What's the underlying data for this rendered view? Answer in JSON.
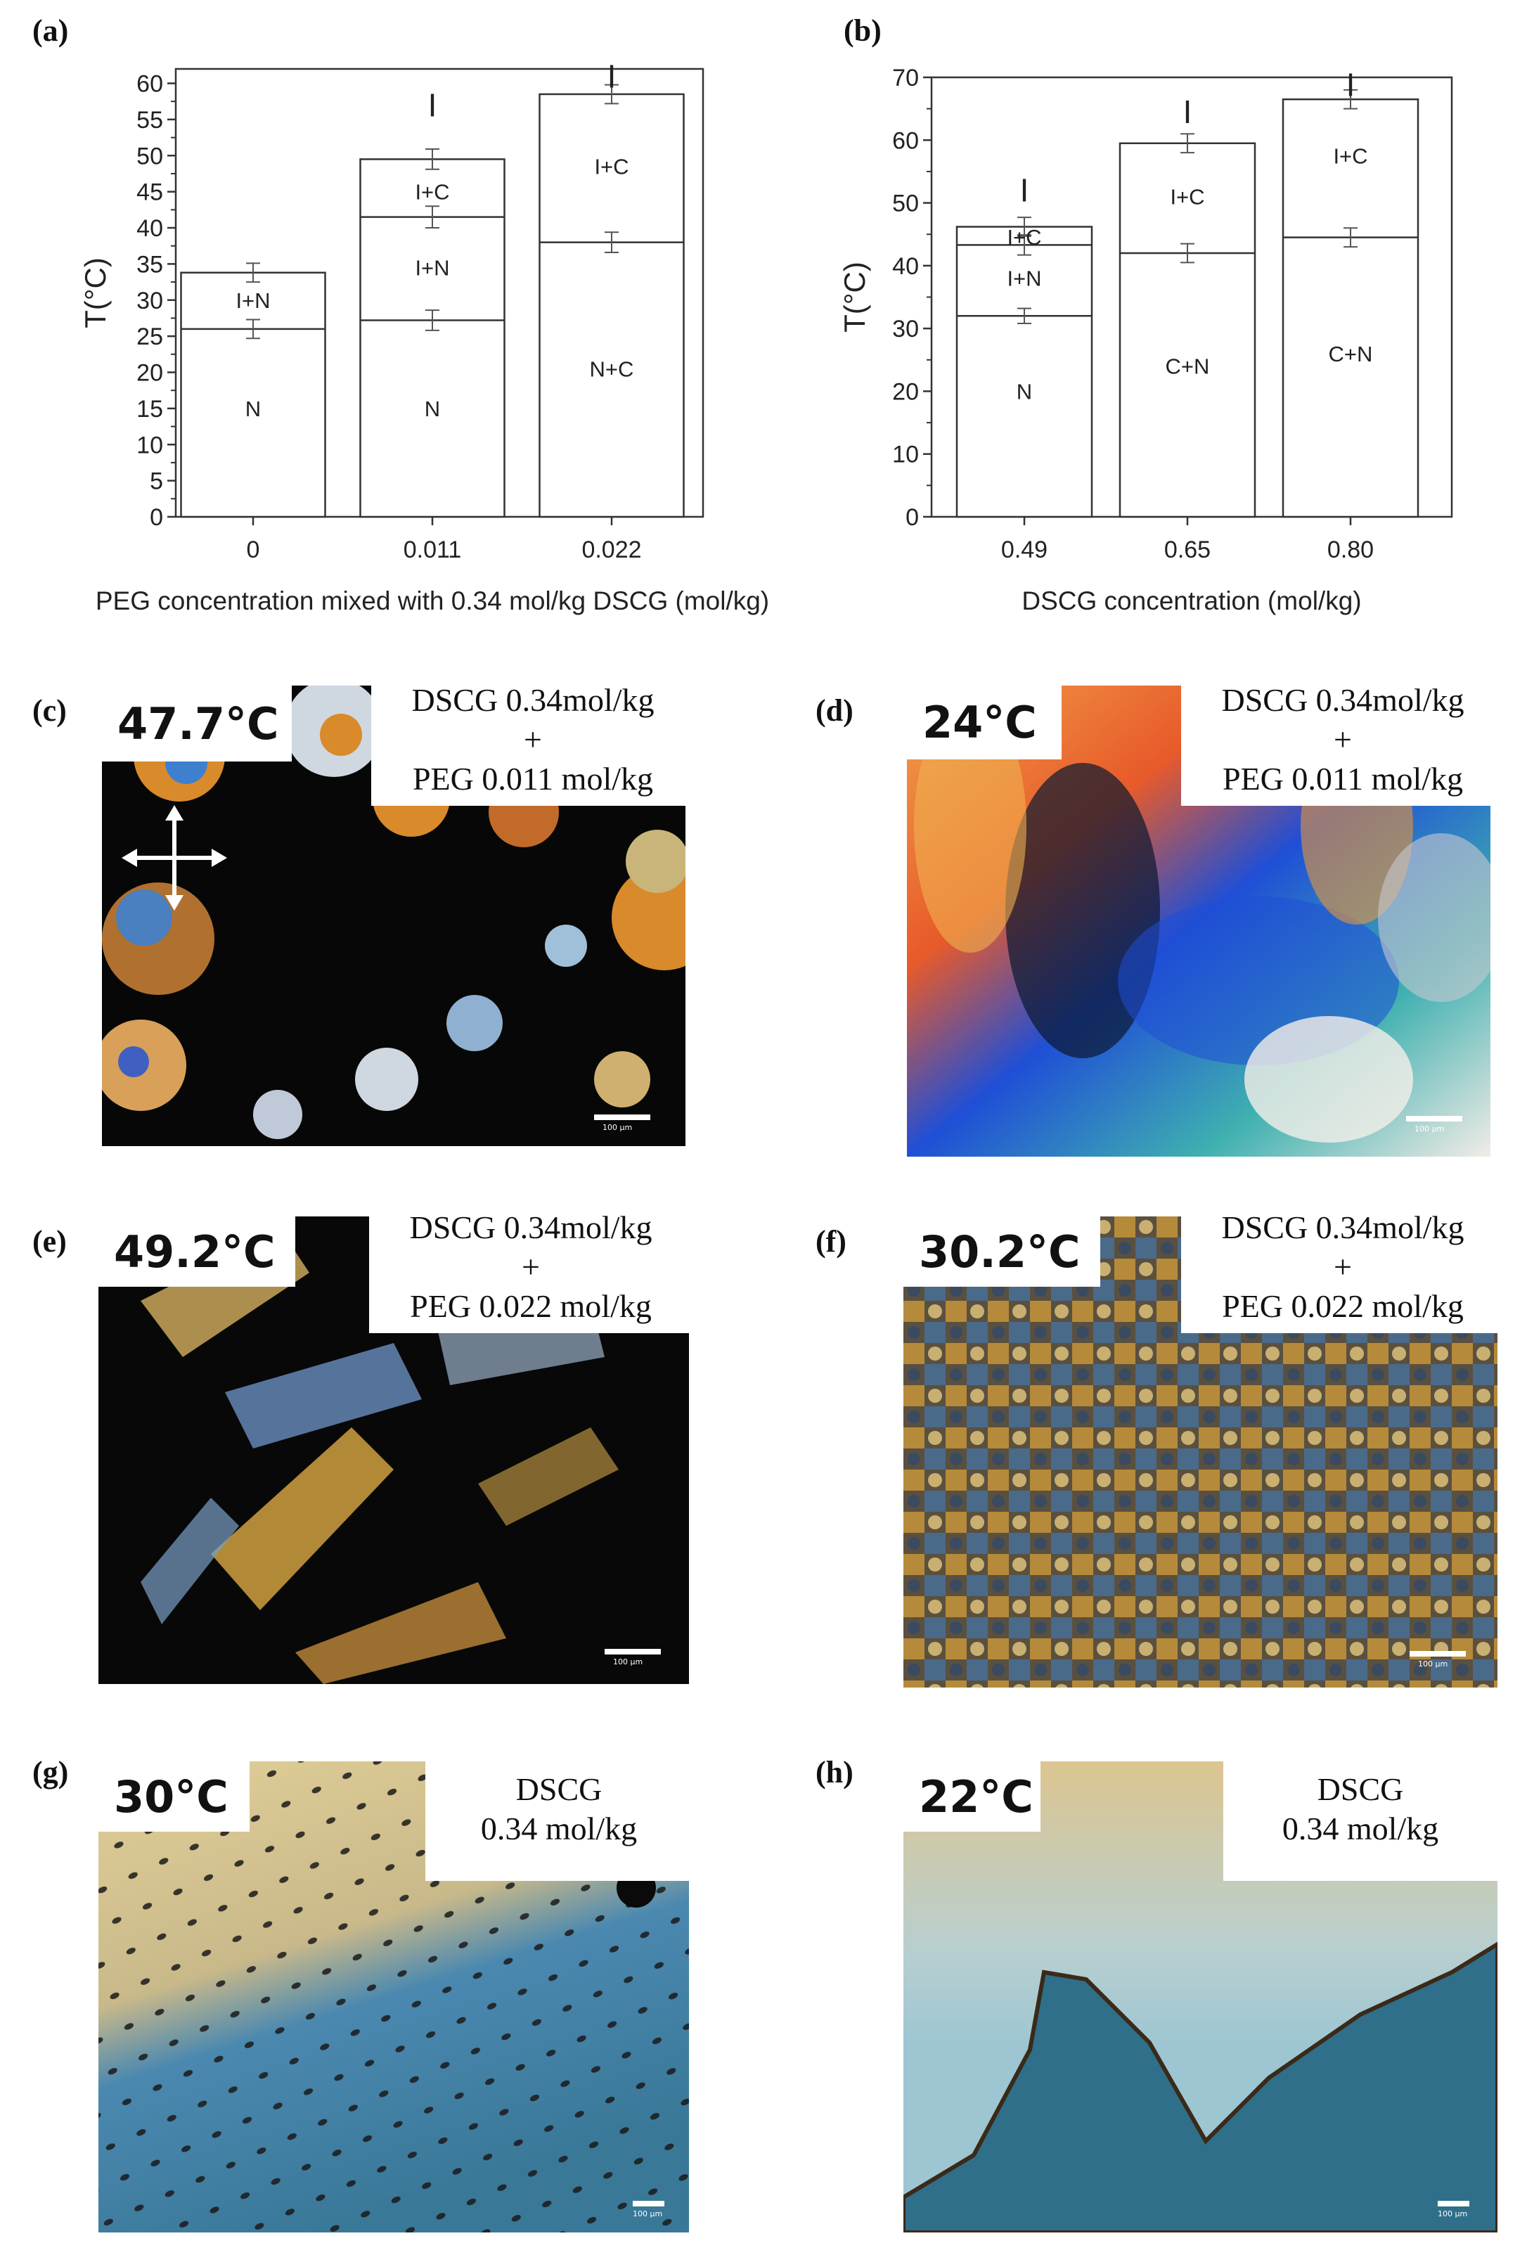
{
  "chart_data": [
    {
      "panel": "(a)",
      "type": "bar",
      "categories": [
        "0",
        "0.011",
        "0.022"
      ],
      "xlabel": "PEG concentration mixed with 0.34 mol/kg DSCG (mol/kg)",
      "ylabel": "T(°C)",
      "ylim": [
        0,
        62
      ],
      "yticks": [
        0,
        5,
        10,
        15,
        20,
        25,
        30,
        35,
        40,
        45,
        50,
        55,
        60
      ],
      "boundaries": [
        {
          "values": [
            26,
            41.5,
            38
          ],
          "errors": [
            1.3,
            1.5,
            1.4
          ]
        },
        {
          "values": [
            33.8,
            49.5,
            58.5
          ],
          "errors": [
            1.3,
            1.4,
            1.3
          ]
        },
        {
          "values": [
            null,
            27.2,
            null
          ],
          "errors": [
            null,
            1.4,
            null
          ]
        }
      ],
      "region_labels": [
        {
          "category": "0",
          "y": 15,
          "text": "N"
        },
        {
          "category": "0",
          "y": 30,
          "text": "I+N"
        },
        {
          "category": "0.011",
          "y": 15,
          "text": "N"
        },
        {
          "category": "0.011",
          "y": 34.5,
          "text": "I+N"
        },
        {
          "category": "0.011",
          "y": 45,
          "text": "I+C"
        },
        {
          "category": "0.011",
          "y": 57,
          "text": "I"
        },
        {
          "category": "0.022",
          "y": 20.5,
          "text": "N+C"
        },
        {
          "category": "0.022",
          "y": 48.5,
          "text": "I+C"
        },
        {
          "category": "0.022",
          "y": 61,
          "text": "I"
        }
      ]
    },
    {
      "panel": "(b)",
      "type": "bar",
      "categories": [
        "0.49",
        "0.65",
        "0.80"
      ],
      "xlabel": "DSCG concentration (mol/kg)",
      "ylabel": "T(°C)",
      "ylim": [
        0,
        70
      ],
      "yticks": [
        0,
        10,
        20,
        30,
        40,
        50,
        60,
        70
      ],
      "boundaries": [
        {
          "values": [
            32,
            42,
            44.5
          ],
          "errors": [
            1.2,
            1.5,
            1.5
          ]
        },
        {
          "values": [
            43.3,
            59.5,
            66.5
          ],
          "errors": [
            1.6,
            1.5,
            1.5
          ]
        },
        {
          "values": [
            46.2,
            null,
            null
          ],
          "errors": [
            1.5,
            null,
            null
          ]
        }
      ],
      "region_labels": [
        {
          "category": "0.49",
          "y": 20,
          "text": "N"
        },
        {
          "category": "0.49",
          "y": 38,
          "text": "I+N"
        },
        {
          "category": "0.49",
          "y": 44.6,
          "text": "I+C"
        },
        {
          "category": "0.49",
          "y": 52,
          "text": "I"
        },
        {
          "category": "0.65",
          "y": 24,
          "text": "C+N"
        },
        {
          "category": "0.65",
          "y": 51,
          "text": "I+C"
        },
        {
          "category": "0.65",
          "y": 64.5,
          "text": "I"
        },
        {
          "category": "0.80",
          "y": 26,
          "text": "C+N"
        },
        {
          "category": "0.80",
          "y": 57.5,
          "text": "I+C"
        },
        {
          "category": "0.80",
          "y": 68.8,
          "text": "I"
        }
      ]
    }
  ],
  "panels": {
    "a": "(a)",
    "b": "(b)",
    "c": "(c)",
    "d": "(d)",
    "e": "(e)",
    "f": "(f)",
    "g": "(g)",
    "h": "(h)"
  },
  "micrographs": [
    {
      "id": "c",
      "temperature": "47.7°C",
      "caption": [
        "DSCG 0.34mol/kg",
        "+",
        "PEG 0.011 mol/kg"
      ],
      "scale": "100 μm",
      "colors": [
        "#0a0a0a",
        "#d98a2b",
        "#3f7fd0"
      ]
    },
    {
      "id": "d",
      "temperature": "24°C",
      "caption": [
        "DSCG 0.34mol/kg",
        "+",
        "PEG 0.011 mol/kg"
      ],
      "scale": "100 μm",
      "colors": [
        "#e8a04a",
        "#1f4fd6",
        "#f2ece6"
      ]
    },
    {
      "id": "e",
      "temperature": "49.2°C",
      "caption": [
        "DSCG 0.34mol/kg",
        "+",
        "PEG 0.022 mol/kg"
      ],
      "scale": "100 μm",
      "colors": [
        "#080808",
        "#cfa040",
        "#6a8fc0"
      ]
    },
    {
      "id": "f",
      "temperature": "30.2°C",
      "caption": [
        "DSCG 0.34mol/kg",
        "+",
        "PEG 0.022 mol/kg"
      ],
      "scale": "100 μm",
      "colors": [
        "#5a5040",
        "#b58a3a",
        "#4a6a8a"
      ]
    },
    {
      "id": "g",
      "temperature": "30°C",
      "caption": [
        "DSCG",
        "0.34 mol/kg"
      ],
      "scale": "100 μm",
      "colors": [
        "#d9c48a",
        "#3f80a8",
        "#1a1a1a"
      ]
    },
    {
      "id": "h",
      "temperature": "22°C",
      "caption": [
        "DSCG",
        "0.34 mol/kg"
      ],
      "scale": "100 μm",
      "colors": [
        "#d8c48e",
        "#9ec6d2",
        "#2f6f8a"
      ]
    }
  ]
}
